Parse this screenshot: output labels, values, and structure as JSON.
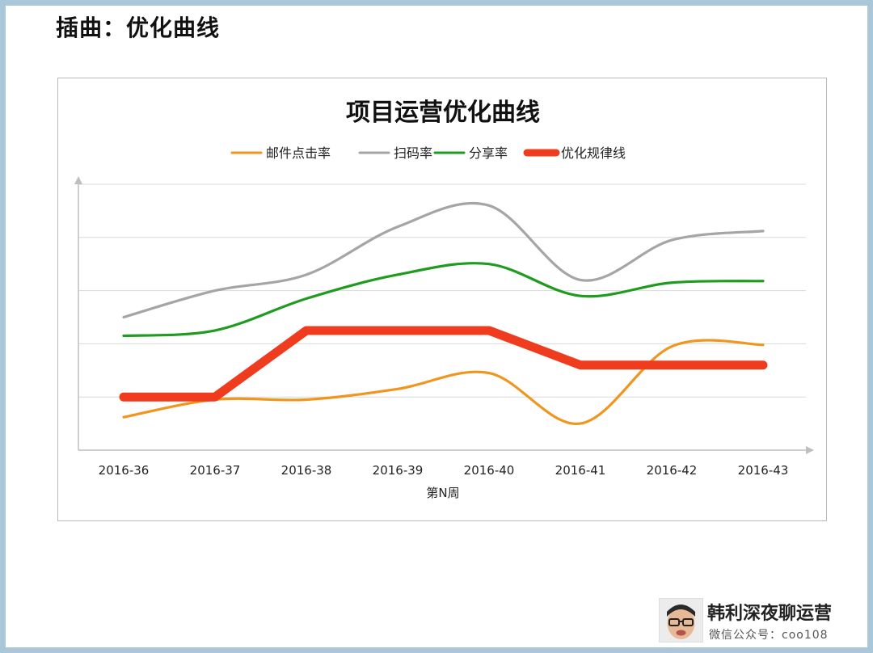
{
  "page": {
    "title": "插曲：优化曲线"
  },
  "brand": {
    "name": "韩利深夜聊运营",
    "subtitle": "微信公众号：coo108"
  },
  "chart_data": {
    "type": "line",
    "title": "项目运营优化曲线",
    "xlabel": "第N周",
    "ylabel": "",
    "categories": [
      "2016-36",
      "2016-37",
      "2016-38",
      "2016-39",
      "2016-40",
      "2016-41",
      "2016-42",
      "2016-43"
    ],
    "ylim": [
      0,
      5
    ],
    "grid": true,
    "legend_position": "top",
    "series": [
      {
        "name": "邮件点击率",
        "color": "#f0961e",
        "smooth": true,
        "thick": false,
        "values": [
          0.62,
          0.95,
          0.95,
          1.15,
          1.45,
          0.5,
          1.95,
          1.98
        ]
      },
      {
        "name": "扫码率",
        "color": "#a5a5a5",
        "smooth": true,
        "thick": false,
        "values": [
          2.5,
          3.0,
          3.3,
          4.2,
          4.6,
          3.2,
          3.95,
          4.12
        ]
      },
      {
        "name": "分享率",
        "color": "#1f9b1f",
        "smooth": true,
        "thick": false,
        "values": [
          2.15,
          2.25,
          2.85,
          3.3,
          3.5,
          2.9,
          3.15,
          3.18
        ]
      },
      {
        "name": "优化规律线",
        "color": "#f03c1e",
        "smooth": false,
        "thick": true,
        "values": [
          1.0,
          1.0,
          2.25,
          2.25,
          2.25,
          1.6,
          1.6,
          1.6
        ]
      }
    ]
  }
}
